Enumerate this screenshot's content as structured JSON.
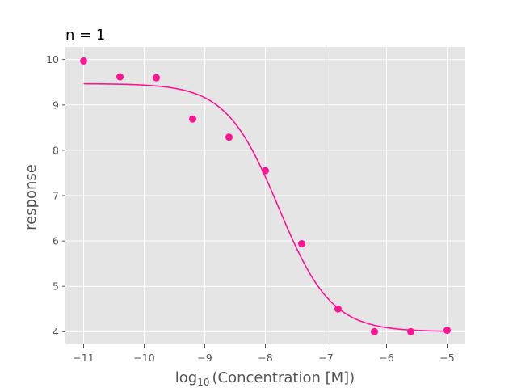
{
  "chart_data": {
    "type": "scatter",
    "title": "n = 1",
    "xlabel_main": "log",
    "xlabel_sub": "10",
    "xlabel_rest": "(Concentration [M])",
    "ylabel": "response",
    "xlim": [
      -11.3,
      -4.7
    ],
    "ylim": [
      3.72,
      10.28
    ],
    "xticks": [
      -11,
      -10,
      -9,
      -8,
      -7,
      -6,
      -5
    ],
    "xtick_labels": [
      "−11",
      "−10",
      "−9",
      "−8",
      "−7",
      "−6",
      "−5"
    ],
    "yticks": [
      4,
      5,
      6,
      7,
      8,
      9,
      10
    ],
    "ytick_labels": [
      "4",
      "5",
      "6",
      "7",
      "8",
      "9",
      "10"
    ],
    "grid": true,
    "background": "#e5e5e5",
    "color": "#ff1493",
    "points": {
      "x": [
        -11,
        -10.4,
        -9.8,
        -9.2,
        -8.6,
        -8.0,
        -7.4,
        -6.8,
        -6.2,
        -5.6,
        -5.0
      ],
      "y": [
        9.97,
        9.62,
        9.6,
        8.69,
        8.29,
        7.55,
        5.94,
        4.5,
        4.0,
        4.0,
        4.03
      ]
    },
    "fit": {
      "model": "4PL",
      "top": 9.47,
      "bottom": 4.0,
      "logEC50": -7.78,
      "hill_slope": 1.0,
      "x_range": [
        -11,
        -5
      ]
    }
  }
}
